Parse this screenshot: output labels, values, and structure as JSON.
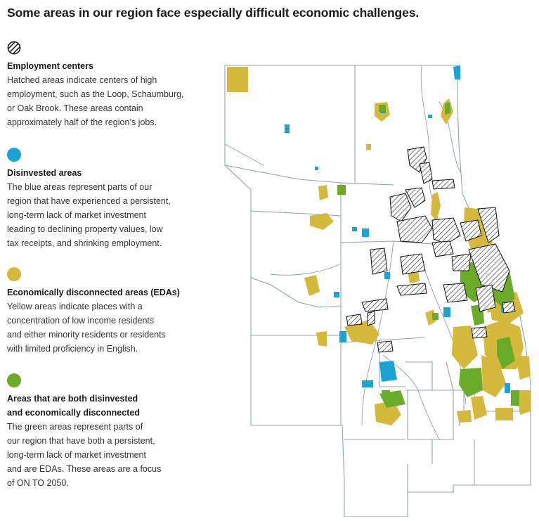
{
  "title": "Some areas in our region face especially difficult economic challenges.",
  "colors": {
    "disinvested": "#1ca3d6",
    "edas": "#d5b93c",
    "both": "#6aab2a",
    "border": "#8fa3ad",
    "hatch": "#222222"
  },
  "legend": [
    {
      "icon": "hatch-circle-icon",
      "heading": [
        "Employment centers"
      ],
      "lines": [
        "Hatched areas indicate centers of high",
        "employment, such as the Loop, Schaumburg,",
        "or Oak Brook. These areas contain",
        "approximately half of the region’s jobs."
      ]
    },
    {
      "icon": "blue-circle-icon",
      "heading": [
        "Disinvested areas"
      ],
      "lines": [
        "The blue areas represent parts of our",
        "region that have experienced a persistent,",
        "long-term lack of market investment",
        "leading to declining property values, low",
        "tax receipts, and shrinking employment."
      ]
    },
    {
      "icon": "yellow-circle-icon",
      "heading": [
        "Economically disconnected areas (EDAs)"
      ],
      "lines": [
        "Yellow areas indicate places with a",
        "concentration of low income residents",
        "and either minority residents or residents",
        "with limited proficiency in English."
      ]
    },
    {
      "icon": "green-circle-icon",
      "heading": [
        "Areas that are both disinvested",
        "and economically disconnected"
      ],
      "lines": [
        "The green areas represent parts of",
        "our region that have both a persistent,",
        "long-term lack of market investment",
        "and are EDAs. These areas are a focus",
        "of ON TO 2050."
      ]
    }
  ]
}
